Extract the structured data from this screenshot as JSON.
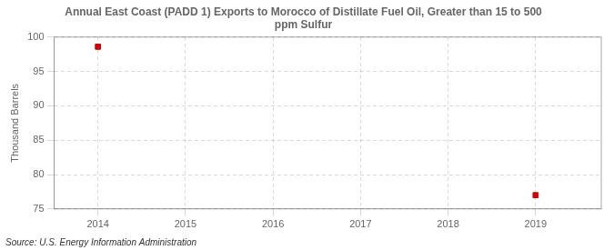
{
  "chart_data": {
    "type": "scatter",
    "title": "Annual East Coast (PADD 1) Exports to Morocco of Distillate Fuel Oil, Greater than 15 to 500\nppm Sulfur",
    "ylabel": "Thousand Barrels",
    "annotations": [
      "Source: U.S. Energy Information Administration"
    ],
    "x": [
      2014,
      2019
    ],
    "values": [
      98.6,
      77.0
    ],
    "color": "#cc0000",
    "marker": "square",
    "xlim": [
      2013.5,
      2019.75
    ],
    "xticks": [
      2014,
      2015,
      2016,
      2017,
      2018,
      2019
    ],
    "ylim": [
      75,
      100
    ],
    "yticks": [
      75,
      80,
      85,
      90,
      95,
      100
    ],
    "grid": true
  }
}
